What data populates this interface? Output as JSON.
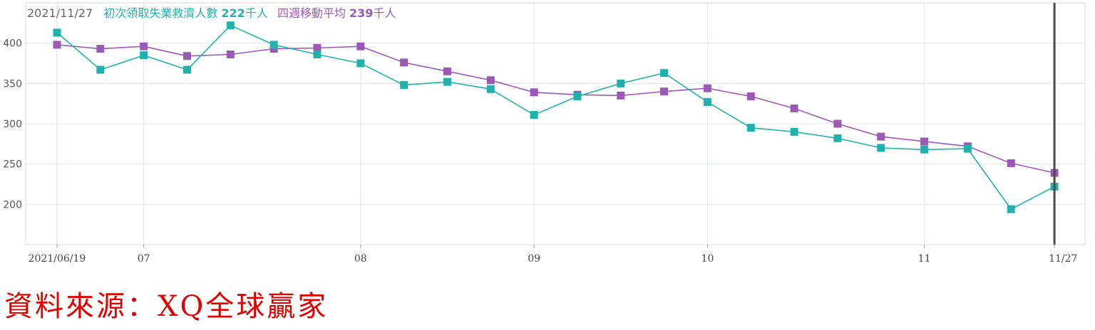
{
  "legend": {
    "date": "2021/11/27",
    "series1_label": "初次領取失業救濟人數",
    "series1_value": "222",
    "series1_unit": "千人",
    "series2_label": "四週移動平均",
    "series2_value": "239",
    "series2_unit": "千人"
  },
  "source_text": "資料來源：XQ全球贏家",
  "colors": {
    "series1": "#20b2aa",
    "series2": "#9b59b6",
    "cursor": "#4a4a4a",
    "grid": "#e3e6ea"
  },
  "chart_data": {
    "type": "line",
    "x_start": "2021-06-19",
    "ylim": [
      150,
      450
    ],
    "yticks": [
      200,
      250,
      300,
      350,
      400
    ],
    "xticks": [
      {
        "label": "2021/06/19",
        "week": 0
      },
      {
        "label": "07",
        "week": 2
      },
      {
        "label": "08",
        "week": 7
      },
      {
        "label": "09",
        "week": 11
      },
      {
        "label": "10",
        "week": 15
      },
      {
        "label": "11",
        "week": 20
      },
      {
        "label": "11/27",
        "week": 23
      }
    ],
    "grid": true,
    "legend_position": "top-left",
    "series": [
      {
        "name": "初次領取失業救濟人數",
        "values": [
          413,
          367,
          385,
          367,
          422,
          398,
          386,
          375,
          348,
          352,
          343,
          311,
          334,
          350,
          363,
          327,
          295,
          290,
          282,
          270,
          268,
          269,
          194,
          222
        ]
      },
      {
        "name": "四週移動平均",
        "values": [
          398,
          393,
          396,
          384,
          386,
          393,
          394,
          396,
          376,
          365,
          354,
          339,
          336,
          335,
          340,
          344,
          334,
          319,
          300,
          284,
          278,
          272,
          251,
          239
        ]
      }
    ]
  }
}
